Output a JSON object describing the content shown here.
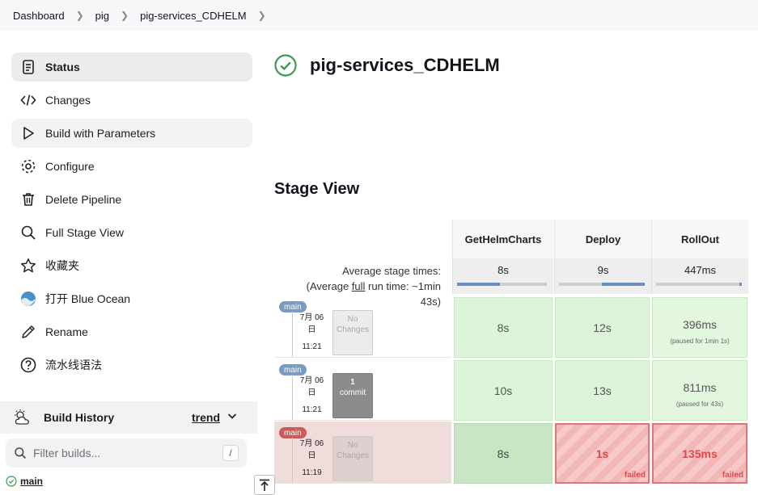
{
  "breadcrumb": [
    "Dashboard",
    "pig",
    "pig-services_CDHELM"
  ],
  "sidebar": {
    "items": [
      {
        "label": "Status"
      },
      {
        "label": "Changes"
      },
      {
        "label": "Build with Parameters"
      },
      {
        "label": "Configure"
      },
      {
        "label": "Delete Pipeline"
      },
      {
        "label": "Full Stage View"
      },
      {
        "label": "收藏夹"
      },
      {
        "label": "打开 Blue Ocean"
      },
      {
        "label": "Rename"
      },
      {
        "label": "流水线语法"
      }
    ]
  },
  "build_history": {
    "title": "Build History",
    "trend_label": "trend",
    "filter_placeholder": "Filter builds...",
    "shortcut": "/",
    "first_item": "main"
  },
  "page": {
    "title": "pig-services_CDHELM",
    "stage_view_title": "Stage View"
  },
  "stage_view": {
    "avg_line1": "Average stage times:",
    "avg_line2_pre": "(Average ",
    "avg_line2_link": "full",
    "avg_line2_post": " run time: ~1min",
    "avg_line3": "43s)",
    "stages": [
      {
        "name": "GetHelmCharts",
        "avg": "8s",
        "avg_fraction": 0.48
      },
      {
        "name": "Deploy",
        "avg": "9s",
        "avg_fraction": 0.5
      },
      {
        "name": "RollOut",
        "avg": "447ms",
        "avg_fraction": 0.03
      }
    ],
    "builds": [
      {
        "branch": "main",
        "date": "7月 06",
        "day": "日",
        "time": "11:21",
        "changes_line1": "No",
        "changes_line2": "Changes",
        "cells": [
          {
            "value": "8s"
          },
          {
            "value": "12s"
          },
          {
            "value": "396ms",
            "note": "(paused for 1min 1s)"
          }
        ]
      },
      {
        "branch": "main",
        "date": "7月 06",
        "day": "日",
        "time": "11:21",
        "changes_line1": "1",
        "changes_line2": "commit",
        "cells": [
          {
            "value": "10s"
          },
          {
            "value": "13s"
          },
          {
            "value": "811ms",
            "note": "(paused for 43s)"
          }
        ]
      },
      {
        "branch": "main",
        "date": "7月 06",
        "day": "日",
        "time": "11:19",
        "changes_line1": "No",
        "changes_line2": "Changes",
        "cells": [
          {
            "value": "8s"
          },
          {
            "value": "1s",
            "status": "failed"
          },
          {
            "value": "135ms",
            "status": "failed"
          }
        ]
      }
    ]
  },
  "colors": {
    "success": "#3d9a4f",
    "failed": "#d94b4b",
    "badge": "#7b9cc0",
    "badge_failed": "#c85b5b"
  }
}
